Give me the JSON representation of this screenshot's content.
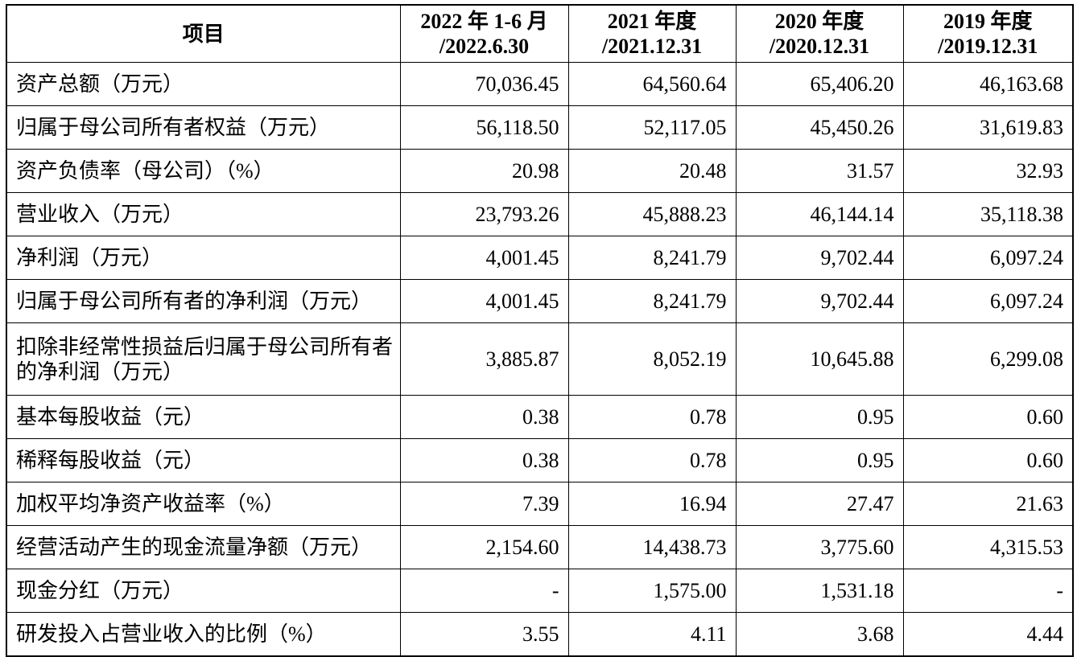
{
  "header": {
    "item": "项目",
    "cols": [
      {
        "line1": "2022 年 1-6 月",
        "line2": "/2022.6.30"
      },
      {
        "line1": "2021 年度",
        "line2": "/2021.12.31"
      },
      {
        "line1": "2020 年度",
        "line2": "/2020.12.31"
      },
      {
        "line1": "2019 年度",
        "line2": "/2019.12.31"
      }
    ]
  },
  "rows": [
    {
      "label": "资产总额（万元）",
      "values": [
        "70,036.45",
        "64,560.64",
        "65,406.20",
        "46,163.68"
      ]
    },
    {
      "label": "归属于母公司所有者权益（万元）",
      "values": [
        "56,118.50",
        "52,117.05",
        "45,450.26",
        "31,619.83"
      ]
    },
    {
      "label": "资产负债率（母公司）（%）",
      "values": [
        "20.98",
        "20.48",
        "31.57",
        "32.93"
      ]
    },
    {
      "label": "营业收入（万元）",
      "values": [
        "23,793.26",
        "45,888.23",
        "46,144.14",
        "35,118.38"
      ]
    },
    {
      "label": "净利润（万元）",
      "values": [
        "4,001.45",
        "8,241.79",
        "9,702.44",
        "6,097.24"
      ]
    },
    {
      "label": "归属于母公司所有者的净利润（万元）",
      "values": [
        "4,001.45",
        "8,241.79",
        "9,702.44",
        "6,097.24"
      ]
    },
    {
      "label": "扣除非经常性损益后归属于母公司所有者的净利润（万元）",
      "values": [
        "3,885.87",
        "8,052.19",
        "10,645.88",
        "6,299.08"
      ]
    },
    {
      "label": "基本每股收益（元）",
      "values": [
        "0.38",
        "0.78",
        "0.95",
        "0.60"
      ]
    },
    {
      "label": "稀释每股收益（元）",
      "values": [
        "0.38",
        "0.78",
        "0.95",
        "0.60"
      ]
    },
    {
      "label": "加权平均净资产收益率（%）",
      "values": [
        "7.39",
        "16.94",
        "27.47",
        "21.63"
      ]
    },
    {
      "label": "经营活动产生的现金流量净额（万元）",
      "values": [
        "2,154.60",
        "14,438.73",
        "3,775.60",
        "4,315.53"
      ]
    },
    {
      "label": "现金分红（万元）",
      "values": [
        "-",
        "1,575.00",
        "1,531.18",
        "-"
      ]
    },
    {
      "label": "研发投入占营业收入的比例（%）",
      "values": [
        "3.55",
        "4.11",
        "3.68",
        "4.44"
      ]
    }
  ]
}
